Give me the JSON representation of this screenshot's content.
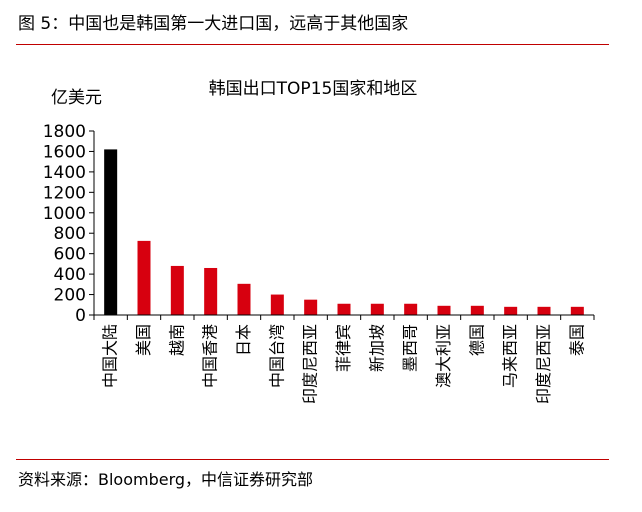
{
  "figure": {
    "caption": "图 5：中国也是韩国第一大进口国，远高于其他国家",
    "source": "资料来源：Bloomberg，中信证券研究部"
  },
  "colors": {
    "rule": "#c00000",
    "bar_highlight": "#000000",
    "bar_default": "#d7000f"
  },
  "chart_data": {
    "type": "bar",
    "title": "韩国出口TOP15国家和地区",
    "ylabel": "亿美元",
    "xlabel": "",
    "ylim": [
      0,
      1800
    ],
    "yticks": [
      0,
      200,
      400,
      600,
      800,
      1000,
      1200,
      1400,
      1600,
      1800
    ],
    "grid": false,
    "legend": "none",
    "categories": [
      "中国大陆",
      "美国",
      "越南",
      "中国香港",
      "日本",
      "中国台湾",
      "印度尼西亚",
      "菲律宾",
      "新加坡",
      "墨西哥",
      "澳大利亚",
      "德国",
      "马来西亚",
      "印度尼西亚",
      "泰国"
    ],
    "values": [
      1620,
      725,
      480,
      460,
      305,
      200,
      150,
      110,
      110,
      110,
      90,
      90,
      80,
      80,
      80
    ]
  }
}
